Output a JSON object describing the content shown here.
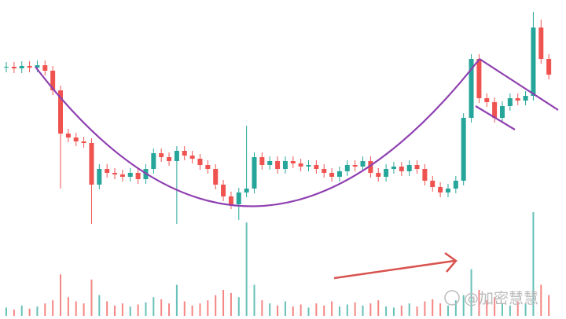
{
  "chart_data": {
    "type": "candlestick",
    "watermark": "@加密慧慧",
    "up_color": "#26a69a",
    "down_color": "#ef5350",
    "ylim": [
      0,
      300
    ],
    "volume_ylim": [
      0,
      100
    ],
    "open": [
      214,
      215,
      213,
      216,
      214,
      217,
      210,
      185,
      130,
      125,
      120,
      118,
      65,
      85,
      80,
      78,
      75,
      80,
      72,
      85,
      105,
      100,
      95,
      108,
      102,
      98,
      90,
      85,
      65,
      50,
      40,
      55,
      60,
      100,
      90,
      95,
      85,
      95,
      92,
      88,
      90,
      85,
      80,
      75,
      82,
      90,
      88,
      95,
      80,
      75,
      85,
      88,
      82,
      90,
      85,
      70,
      62,
      55,
      60,
      70,
      150,
      225,
      175,
      170,
      150,
      165,
      175,
      172,
      178,
      265,
      225
    ],
    "high": [
      221,
      221,
      222,
      222,
      223,
      223,
      216,
      191,
      136,
      131,
      126,
      124,
      91,
      91,
      86,
      84,
      86,
      86,
      91,
      111,
      111,
      106,
      114,
      114,
      108,
      104,
      96,
      91,
      71,
      56,
      61,
      140,
      106,
      106,
      101,
      101,
      101,
      101,
      98,
      96,
      96,
      91,
      86,
      88,
      96,
      96,
      101,
      101,
      86,
      91,
      94,
      94,
      96,
      96,
      91,
      76,
      68,
      66,
      76,
      156,
      231,
      231,
      181,
      176,
      171,
      181,
      181,
      184,
      285,
      275,
      231
    ],
    "low": [
      208,
      207,
      207,
      208,
      208,
      204,
      179,
      60,
      119,
      114,
      112,
      15,
      59,
      74,
      72,
      69,
      69,
      66,
      66,
      79,
      94,
      89,
      15,
      96,
      92,
      84,
      79,
      59,
      44,
      34,
      20,
      49,
      54,
      84,
      84,
      79,
      79,
      86,
      82,
      82,
      79,
      74,
      69,
      69,
      76,
      82,
      82,
      74,
      69,
      69,
      79,
      76,
      76,
      79,
      64,
      56,
      49,
      49,
      54,
      64,
      144,
      169,
      164,
      144,
      144,
      159,
      166,
      166,
      172,
      219,
      199
    ],
    "close": [
      215,
      213,
      216,
      214,
      217,
      210,
      185,
      130,
      125,
      120,
      118,
      65,
      85,
      80,
      78,
      75,
      80,
      72,
      85,
      105,
      100,
      95,
      108,
      102,
      98,
      90,
      85,
      65,
      50,
      40,
      55,
      60,
      100,
      90,
      95,
      85,
      95,
      92,
      88,
      90,
      85,
      80,
      75,
      82,
      90,
      88,
      95,
      80,
      75,
      85,
      88,
      82,
      90,
      85,
      70,
      62,
      55,
      60,
      70,
      150,
      225,
      175,
      170,
      150,
      165,
      175,
      172,
      178,
      265,
      225,
      205
    ],
    "volume": [
      8,
      6,
      10,
      7,
      9,
      12,
      15,
      40,
      18,
      14,
      12,
      35,
      20,
      14,
      10,
      12,
      9,
      11,
      13,
      18,
      16,
      12,
      30,
      14,
      10,
      12,
      15,
      20,
      25,
      22,
      18,
      90,
      30,
      15,
      12,
      10,
      14,
      9,
      11,
      8,
      12,
      10,
      14,
      9,
      11,
      13,
      10,
      12,
      15,
      9,
      8,
      10,
      12,
      9,
      14,
      16,
      12,
      10,
      15,
      20,
      45,
      25,
      15,
      18,
      12,
      10,
      14,
      12,
      100,
      30,
      20
    ]
  }
}
